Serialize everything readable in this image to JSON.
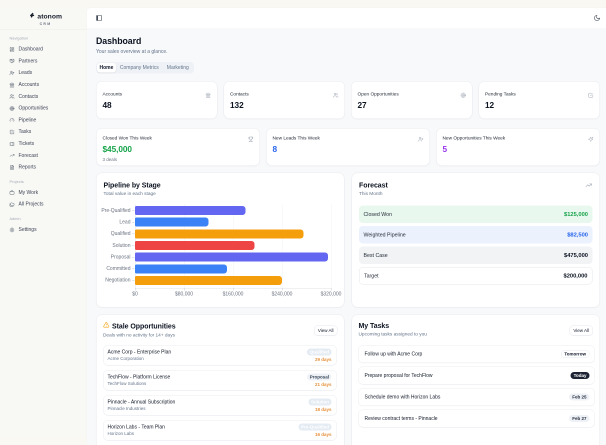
{
  "brand": {
    "name": "atonom",
    "sub": "CRM"
  },
  "topbar": {
    "left_icon": "panel-left-icon",
    "right_icon": "moon-icon"
  },
  "sidebar": {
    "sections": [
      {
        "label": "Navigation",
        "items": [
          {
            "label": "Dashboard",
            "icon": "layout-dashboard-icon"
          },
          {
            "label": "Partners",
            "icon": "handshake-icon"
          },
          {
            "label": "Leads",
            "icon": "user-plus-icon"
          },
          {
            "label": "Accounts",
            "icon": "landmark-icon"
          },
          {
            "label": "Contacts",
            "icon": "users-icon"
          },
          {
            "label": "Opportunities",
            "icon": "target-icon"
          },
          {
            "label": "Pipeline",
            "icon": "gauge-icon"
          },
          {
            "label": "Tasks",
            "icon": "check-square-icon"
          },
          {
            "label": "Tickets",
            "icon": "ticket-icon"
          },
          {
            "label": "Forecast",
            "icon": "trending-up-icon"
          },
          {
            "label": "Reports",
            "icon": "file-text-icon"
          }
        ]
      },
      {
        "label": "Projects",
        "items": [
          {
            "label": "My Work",
            "icon": "briefcase-icon"
          },
          {
            "label": "All Projects",
            "icon": "folders-icon"
          }
        ]
      },
      {
        "label": "Admin",
        "items": [
          {
            "label": "Settings",
            "icon": "settings-icon"
          }
        ]
      }
    ]
  },
  "header": {
    "title": "Dashboard",
    "subtitle": "Your sales overview at a glance.",
    "tabs": [
      {
        "label": "Home",
        "active": true
      },
      {
        "label": "Company Metrics",
        "active": false
      },
      {
        "label": "Marketing",
        "active": false
      }
    ]
  },
  "kpis": [
    {
      "label": "Accounts",
      "value": "48",
      "icon": "landmark-icon"
    },
    {
      "label": "Contacts",
      "value": "132",
      "icon": "users-icon"
    },
    {
      "label": "Open Opportunities",
      "value": "27",
      "icon": "target-icon"
    },
    {
      "label": "Pending Tasks",
      "value": "12",
      "icon": "check-square-icon"
    }
  ],
  "weekly": [
    {
      "label": "Closed Won This Week",
      "value": "$45,000",
      "color": "#16A34A",
      "sub": "3 deals",
      "icon": "trophy-icon"
    },
    {
      "label": "New Leads This Week",
      "value": "8",
      "color": "#2563EB",
      "sub": "",
      "icon": "user-plus-icon"
    },
    {
      "label": "New Opportunities This Week",
      "value": "5",
      "color": "#9333EA",
      "sub": "",
      "icon": "sparkles-icon"
    }
  ],
  "chart_data": {
    "type": "bar",
    "orientation": "horizontal",
    "title": "Pipeline by Stage",
    "subtitle": "Total value in each stage",
    "categories": [
      "Pre-Qualified",
      "Lead",
      "Qualified",
      "Solution",
      "Proposal",
      "Committed",
      "Negotiation"
    ],
    "values": [
      180000,
      120000,
      275000,
      195000,
      315000,
      150000,
      240000
    ],
    "bar_colors": [
      "#6366F1",
      "#3B82F6",
      "#F59E0B",
      "#EF4444",
      "#6366F1",
      "#3B82F6",
      "#F59E0B"
    ],
    "xlabel": "",
    "ylabel": "",
    "xlim": [
      0,
      320000
    ],
    "xticks": [
      {
        "value": 0,
        "label": "$0"
      },
      {
        "value": 80000,
        "label": "$80,000"
      },
      {
        "value": 160000,
        "label": "$160,000"
      },
      {
        "value": 240000,
        "label": "$240,000"
      },
      {
        "value": 320000,
        "label": "$320,000"
      }
    ],
    "grid": true,
    "legend": false
  },
  "forecast": {
    "title": "Forecast",
    "subtitle": "This Month",
    "icon": "trending-up-icon",
    "rows": [
      {
        "label": "Closed Won",
        "value": "$125,000",
        "bg": "#E9F8EF",
        "color": "#16A34A",
        "border": "none"
      },
      {
        "label": "Weighted Pipeline",
        "value": "$82,500",
        "bg": "#EBF2FD",
        "color": "#2563EB",
        "border": "none"
      },
      {
        "label": "Best Case",
        "value": "$475,000",
        "bg": "#F1F3F5",
        "color": "#0B1220",
        "border": "none"
      },
      {
        "label": "Target",
        "value": "$200,000",
        "bg": "#FFFFFF",
        "color": "#0B1220",
        "border": "1px solid #E5E7EB"
      }
    ]
  },
  "stale": {
    "title": "Stale Opportunities",
    "icon": "alert-triangle-icon",
    "subtitle": "Deals with no activity for 14+ days",
    "view_all": "View All",
    "items": [
      {
        "name": "Acme Corp - Enterprise Plan",
        "company": "Acme Corporation",
        "stage": "Qualified",
        "stage_bg": "#E4EBF3",
        "stage_color": "#FFFFFF",
        "days": "29 days"
      },
      {
        "name": "TechFlow - Platform License",
        "company": "TechFlow Solutions",
        "stage": "Proposal",
        "stage_bg": "#EEF2F7",
        "stage_color": "#3A4556",
        "days": "21 days"
      },
      {
        "name": "Pinnacle - Annual Subscription",
        "company": "Pinnacle Industries",
        "stage": "Solution",
        "stage_bg": "#E4EBF3",
        "stage_color": "#FFFFFF",
        "days": "18 days"
      },
      {
        "name": "Horizon Labs - Team Plan",
        "company": "Horizon Labs",
        "stage": "Pre-Qualified",
        "stage_bg": "#E4EBF3",
        "stage_color": "#FFFFFF",
        "days": "16 days"
      }
    ]
  },
  "tasks": {
    "title": "My Tasks",
    "subtitle": "Upcoming tasks assigned to you",
    "view_all": "View All",
    "items": [
      {
        "title": "Follow up with Acme Corp",
        "due": "Tomorrow",
        "badge_style": "outline"
      },
      {
        "title": "Prepare proposal for TechFlow",
        "due": "Today",
        "badge_style": "dark"
      },
      {
        "title": "Schedule demo with Horizon Labs",
        "due": "Feb 25",
        "badge_style": "light"
      },
      {
        "title": "Review contract terms - Pinnacle",
        "due": "Feb 27",
        "badge_style": "light"
      }
    ]
  }
}
